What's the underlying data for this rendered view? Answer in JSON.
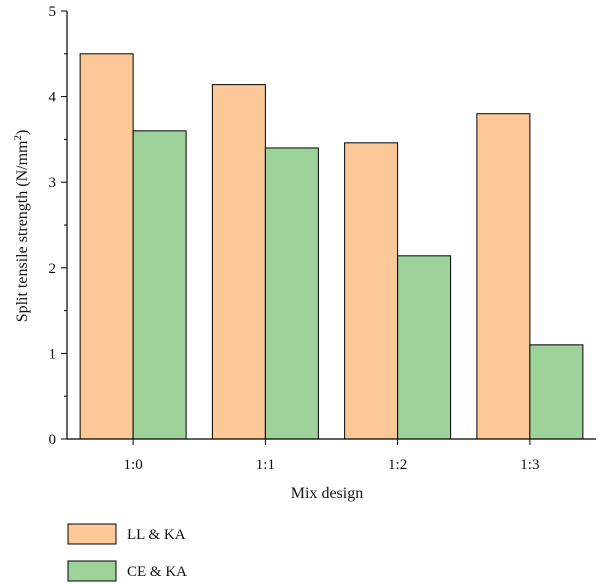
{
  "chart_data": {
    "type": "bar",
    "categories": [
      "1:0",
      "1:1",
      "1:2",
      "1:3"
    ],
    "series": [
      {
        "name": "LL & KA",
        "values": [
          4.5,
          4.14,
          3.46,
          3.8
        ],
        "color": "#fcc897"
      },
      {
        "name": "CE & KA",
        "values": [
          3.6,
          3.4,
          2.14,
          1.1
        ],
        "color": "#9dd29a"
      }
    ],
    "xlabel": "Mix design",
    "ylabel": "Split tensile strength (N/mm",
    "ylabel_superscript": "2",
    "ylabel_suffix": ")",
    "ylim": [
      0,
      5
    ],
    "yticks": [
      "0",
      "1",
      "2",
      "3",
      "4",
      "5"
    ],
    "grid": false,
    "legend_position": "bottom-left"
  }
}
